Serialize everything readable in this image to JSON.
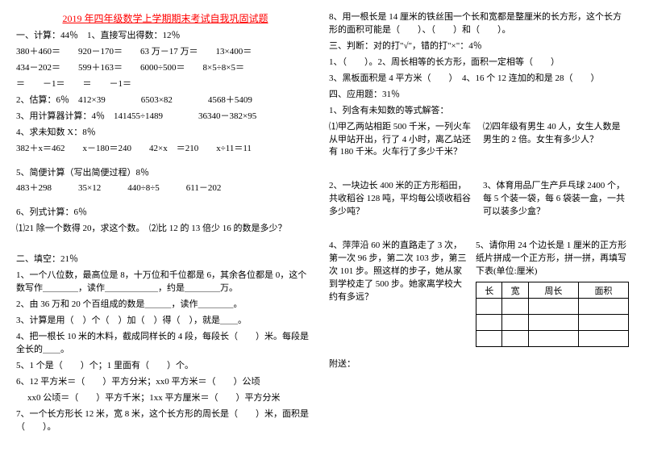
{
  "title": "2019 年四年级数学上学期期末考试自我巩固试题",
  "left": {
    "sec1": "一、计算：44％　1、直接写出得数：12％",
    "row1a": "380＋460＝　　920－170＝　　63 万－17 万＝　　13×400＝",
    "row1b": "434－202＝　　599＋163＝　　6000÷500＝　　8×5÷8×5＝",
    "row1c": "＝　　－1＝　　＝　　－1＝",
    "sec2": "2、估算：6％　412×39　　　　6503×82　　　　4568＋5409",
    "sec3": "3、用计算器计算：4％　141455÷1489　　　　36340－382×95",
    "sec4": "4、求未知数 X：8％",
    "sec4a": "382＋x＝462　　x－180＝240　　42×x　＝210　　x÷11＝11",
    "sec5": "5、简便计算（写出简便过程）8％",
    "sec5a": "483＋298　　　35×12　　　440÷8÷5　　　611－202",
    "sec6": "6、列式计算：6％",
    "sec6a": "⑴21 除一个数得 20，求这个数。　⑵比 12 的 13 倍少 16 的数是多少？",
    "fill": "二、填空：21％",
    "f1": "1、一个八位数，最高位是 8，十万位和千位都是 6，其余各位都是 0，这个数写作＿＿＿＿，读作＿＿＿＿＿＿，约是＿＿＿＿万。",
    "f2": "2、由 36 万和 20 个百组成的数是＿＿＿，读作＿＿＿＿。",
    "f3": "3、计算是用（　）个（　）加（　）得（　），就是＿＿。",
    "f4": "4、把一根长 10 米的木料，截成同样长的 4 段，每段长（　　）米。每段是全长的＿＿。",
    "f5": "5、1 个是（　　）个；1 里面有（　　）个。",
    "f6": "6、12 平方米＝（　　）平方分米；xx0 平方米＝（　　）公顷",
    "f6b": "xx0 公顷＝（　　）平方千米；1xx 平方厘米＝（　　）平方分米",
    "f7": "7、一个长方形长 12 米，宽 8 米，这个长方形的周长是（　　）米，面积是（　　）。"
  },
  "right": {
    "r8": "8、用一根长是 14 厘米的铁丝围一个长和宽都是整厘米的长方形，这个长方形的面积可能是（　　）、（　　）和（　　）。",
    "sec3": "三、判断：对的打\"√\"，错的打\"×\"：4％",
    "j1": "1、（　　）。2、周长相等的长方形，面积一定相等（　　）",
    "j3": "3、黑板面积是 4 平方米（　　）　4、16 个 12 连加的和是 28（　　）",
    "sec4": "四、应用题：31％",
    "a1h": "1、列含有未知数的等式解答：",
    "a1l": "⑴甲乙两站相距 500 千米，一列火车从甲站开出，行了 4 小时，离乙站还有 180 千米。火车行了多少千米？",
    "a1r": "⑵四年级有男生 40 人，女生人数是男生的 2 倍。女生有多少人？",
    "a2l": "2、一块边长 400 米的正方形稻田，共收稻谷 128 吨，平均每公顷收稻谷多少吨？",
    "a2r": "3、体育用品厂生产乒乓球 2400 个，每 5 个装一袋，每 6 袋装一盒，一共可以装多少盒？",
    "a4l": "4、萍萍沿 60 米的直路走了 3 次，第一次 96 步，第二次 103 步，第三次 101 步。照这样的步子，她从家到学校走了 500 步。她家离学校大约有多远？",
    "a5r": "5、请你用 24 个边长是 1 厘米的正方形纸片拼成一个正方形，拼一拼，再填写下表(单位:厘米)",
    "th1": "长",
    "th2": "宽",
    "th3": "周长",
    "th4": "面积",
    "att": "附送："
  }
}
